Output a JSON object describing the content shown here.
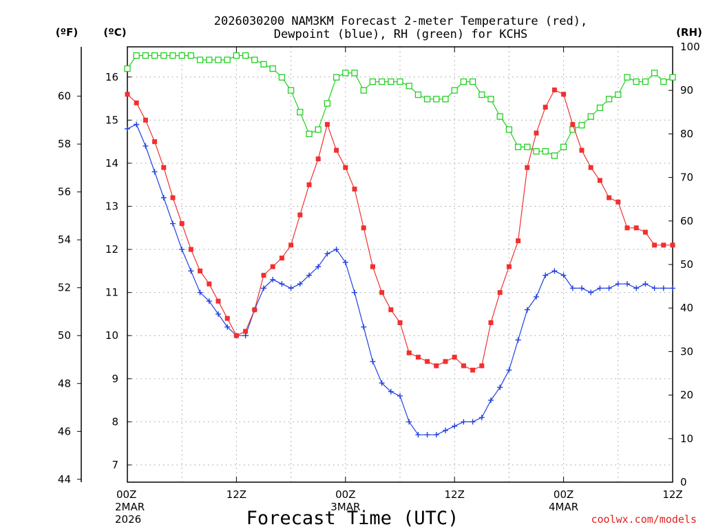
{
  "chart_data": {
    "type": "line",
    "title_line1": "2026030200 NAM3KM Forecast 2-meter Temperature (red),",
    "title_line2": "Dewpoint (blue), RH (green) for KCHS",
    "xlabel": "Forecast Time (UTC)",
    "watermark": "coolwx.com/models",
    "left_outer_unit": "(ºF)",
    "left_inner_unit": "(ºC)",
    "right_unit": "(RH)",
    "x_range_hours": [
      0,
      60
    ],
    "c_range": [
      6.6,
      16.7
    ],
    "rh_range": [
      0,
      100
    ],
    "c_ticks": [
      7,
      8,
      9,
      10,
      11,
      12,
      13,
      14,
      15,
      16
    ],
    "f_ticks": [
      44,
      46,
      48,
      50,
      52,
      54,
      56,
      58,
      60
    ],
    "rh_ticks": [
      0,
      10,
      20,
      30,
      40,
      50,
      60,
      70,
      80,
      90,
      100
    ],
    "x_ticks": [
      {
        "hour": 0,
        "line1": "00Z",
        "line2": "2MAR",
        "line3": "2026"
      },
      {
        "hour": 12,
        "line1": "12Z",
        "line2": "",
        "line3": ""
      },
      {
        "hour": 24,
        "line1": "00Z",
        "line2": "3MAR",
        "line3": ""
      },
      {
        "hour": 36,
        "line1": "12Z",
        "line2": "",
        "line3": ""
      },
      {
        "hour": 48,
        "line1": "00Z",
        "line2": "4MAR",
        "line3": ""
      },
      {
        "hour": 60,
        "line1": "12Z",
        "line2": "",
        "line3": ""
      }
    ],
    "colors": {
      "temperature": "#f03030",
      "dewpoint": "#2040e0",
      "rh": "#20d020",
      "grid": "#999999",
      "watermark": "#e02020"
    },
    "hours": [
      0,
      1,
      2,
      3,
      4,
      5,
      6,
      7,
      8,
      9,
      10,
      11,
      12,
      13,
      14,
      15,
      16,
      17,
      18,
      19,
      20,
      21,
      22,
      23,
      24,
      25,
      26,
      27,
      28,
      29,
      30,
      31,
      32,
      33,
      34,
      35,
      36,
      37,
      38,
      39,
      40,
      41,
      42,
      43,
      44,
      45,
      46,
      47,
      48,
      49,
      50,
      51,
      52,
      53,
      54,
      55,
      56,
      57,
      58,
      59,
      60
    ],
    "series": [
      {
        "name": "Temperature",
        "unit": "C",
        "values": [
          15.6,
          15.4,
          15.0,
          14.5,
          13.9,
          13.2,
          12.6,
          12.0,
          11.5,
          11.2,
          10.8,
          10.4,
          10.0,
          10.1,
          10.6,
          11.4,
          11.6,
          11.8,
          12.1,
          12.8,
          13.5,
          14.1,
          14.9,
          14.3,
          13.9,
          13.4,
          12.5,
          11.6,
          11.0,
          10.6,
          10.3,
          9.6,
          9.5,
          9.4,
          9.3,
          9.4,
          9.5,
          9.3,
          9.2,
          9.3,
          10.3,
          11.0,
          11.6,
          12.2,
          13.9,
          14.7,
          15.3,
          15.7,
          15.6,
          14.9,
          14.3,
          13.9,
          13.6,
          13.2,
          13.1,
          12.5,
          12.5,
          12.4,
          12.1,
          12.1,
          12.1
        ]
      },
      {
        "name": "Dewpoint",
        "unit": "C",
        "values": [
          14.8,
          14.9,
          14.4,
          13.8,
          13.2,
          12.6,
          12.0,
          11.5,
          11.0,
          10.8,
          10.5,
          10.2,
          10.0,
          10.0,
          10.6,
          11.1,
          11.3,
          11.2,
          11.1,
          11.2,
          11.4,
          11.6,
          11.9,
          12.0,
          11.7,
          11.0,
          10.2,
          9.4,
          8.9,
          8.7,
          8.6,
          8.0,
          7.7,
          7.7,
          7.7,
          7.8,
          7.9,
          8.0,
          8.0,
          8.1,
          8.5,
          8.8,
          9.2,
          9.9,
          10.6,
          10.9,
          11.4,
          11.5,
          11.4,
          11.1,
          11.1,
          11.0,
          11.1,
          11.1,
          11.2,
          11.2,
          11.1,
          11.2,
          11.1,
          11.1,
          11.1
        ]
      },
      {
        "name": "RH",
        "unit": "%",
        "values": [
          95,
          98,
          98,
          98,
          98,
          98,
          98,
          98,
          97,
          97,
          97,
          97,
          98,
          98,
          97,
          96,
          95,
          93,
          90,
          85,
          80,
          81,
          87,
          93,
          94,
          94,
          90,
          92,
          92,
          92,
          92,
          91,
          89,
          88,
          88,
          88,
          90,
          92,
          92,
          89,
          88,
          84,
          81,
          77,
          77,
          76,
          76,
          75,
          77,
          81,
          82,
          84,
          86,
          88,
          89,
          93,
          92,
          92,
          94,
          92,
          93
        ]
      }
    ]
  }
}
